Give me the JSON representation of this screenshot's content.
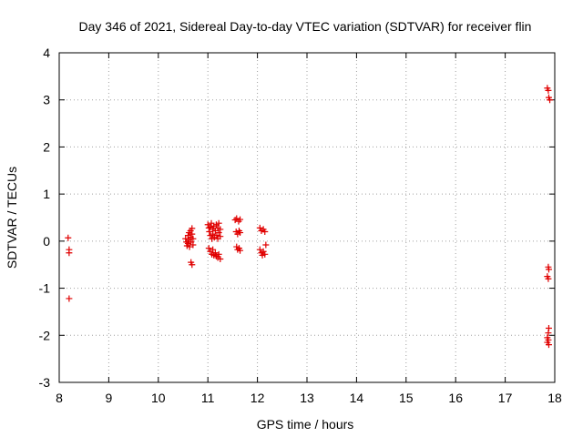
{
  "chart_data": {
    "type": "scatter",
    "title": "Day 346 of 2021, Sidereal Day-to-day VTEC variation (SDTVAR) for receiver flin",
    "xlabel": "GPS time / hours",
    "ylabel": "SDTVAR / TECUs",
    "xlim": [
      8,
      18
    ],
    "ylim": [
      -3,
      4
    ],
    "xticks": [
      8,
      9,
      10,
      11,
      12,
      13,
      14,
      15,
      16,
      17,
      18
    ],
    "yticks": [
      -3,
      -2,
      -1,
      0,
      1,
      2,
      3,
      4
    ],
    "grid": true,
    "marker": "+",
    "color": "#e00000",
    "series": [
      {
        "name": "SDTVAR",
        "points": [
          [
            8.18,
            0.07
          ],
          [
            8.2,
            -0.18
          ],
          [
            8.2,
            -0.25
          ],
          [
            8.2,
            -1.22
          ],
          [
            10.55,
            0.05
          ],
          [
            10.57,
            -0.02
          ],
          [
            10.58,
            -0.1
          ],
          [
            10.6,
            0.12
          ],
          [
            10.6,
            -0.05
          ],
          [
            10.62,
            0.18
          ],
          [
            10.62,
            0.02
          ],
          [
            10.63,
            -0.12
          ],
          [
            10.65,
            0.22
          ],
          [
            10.65,
            0.08
          ],
          [
            10.66,
            -0.02
          ],
          [
            10.68,
            0.27
          ],
          [
            10.68,
            0.15
          ],
          [
            10.7,
            0.05
          ],
          [
            10.7,
            -0.08
          ],
          [
            10.66,
            -0.45
          ],
          [
            10.68,
            -0.5
          ],
          [
            11.0,
            0.35
          ],
          [
            11.02,
            0.28
          ],
          [
            11.03,
            0.2
          ],
          [
            11.05,
            0.3
          ],
          [
            11.05,
            0.12
          ],
          [
            11.07,
            0.38
          ],
          [
            11.08,
            0.05
          ],
          [
            11.1,
            0.25
          ],
          [
            11.1,
            0.15
          ],
          [
            11.12,
            0.32
          ],
          [
            11.13,
            0.08
          ],
          [
            11.15,
            0.22
          ],
          [
            11.17,
            0.35
          ],
          [
            11.18,
            0.12
          ],
          [
            11.2,
            0.28
          ],
          [
            11.2,
            0.05
          ],
          [
            11.22,
            0.18
          ],
          [
            11.22,
            0.38
          ],
          [
            11.25,
            0.25
          ],
          [
            11.25,
            0.1
          ],
          [
            11.02,
            -0.15
          ],
          [
            11.05,
            -0.22
          ],
          [
            11.08,
            -0.28
          ],
          [
            11.1,
            -0.18
          ],
          [
            11.12,
            -0.3
          ],
          [
            11.15,
            -0.25
          ],
          [
            11.17,
            -0.32
          ],
          [
            11.2,
            -0.35
          ],
          [
            11.22,
            -0.28
          ],
          [
            11.25,
            -0.38
          ],
          [
            11.55,
            0.45
          ],
          [
            11.58,
            0.48
          ],
          [
            11.62,
            0.42
          ],
          [
            11.65,
            0.46
          ],
          [
            11.57,
            0.2
          ],
          [
            11.6,
            0.15
          ],
          [
            11.63,
            0.22
          ],
          [
            11.65,
            0.18
          ],
          [
            11.58,
            -0.12
          ],
          [
            11.6,
            -0.18
          ],
          [
            11.63,
            -0.15
          ],
          [
            11.65,
            -0.2
          ],
          [
            12.05,
            0.28
          ],
          [
            12.08,
            0.22
          ],
          [
            12.12,
            0.25
          ],
          [
            12.15,
            0.2
          ],
          [
            12.05,
            -0.18
          ],
          [
            12.08,
            -0.25
          ],
          [
            12.1,
            -0.3
          ],
          [
            12.12,
            -0.22
          ],
          [
            12.15,
            -0.28
          ],
          [
            12.17,
            -0.08
          ],
          [
            17.85,
            3.25
          ],
          [
            17.87,
            3.2
          ],
          [
            17.88,
            3.05
          ],
          [
            17.9,
            3.0
          ],
          [
            17.87,
            -0.55
          ],
          [
            17.88,
            -0.6
          ],
          [
            17.85,
            -0.75
          ],
          [
            17.87,
            -0.8
          ],
          [
            17.88,
            -1.85
          ],
          [
            17.87,
            -1.95
          ],
          [
            17.85,
            -2.05
          ],
          [
            17.87,
            -2.1
          ],
          [
            17.85,
            -2.15
          ],
          [
            17.88,
            -2.2
          ]
        ]
      }
    ]
  }
}
